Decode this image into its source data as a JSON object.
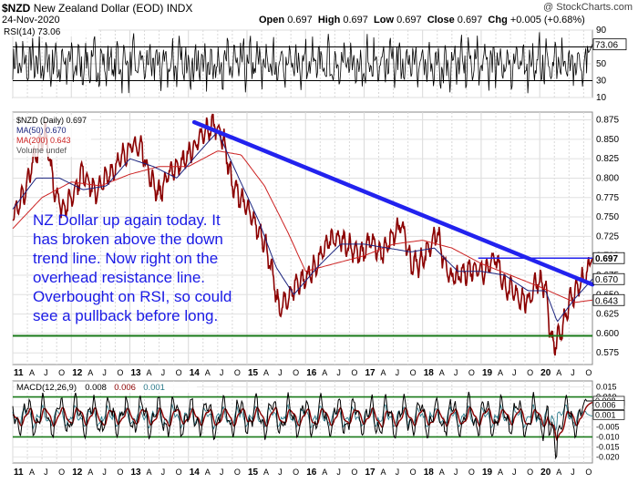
{
  "header": {
    "symbol": "$NZD",
    "name": "New Zealand Dollar (EOD)",
    "exchange": "INDX",
    "watermark": "@ StockCharts.com",
    "date": "24-Nov-2020",
    "open_label": "Open",
    "open": "0.697",
    "high_label": "High",
    "high": "0.697",
    "low_label": "Low",
    "low": "0.697",
    "close_label": "Close",
    "close": "0.697",
    "chg_label": "Chg",
    "chg": "+0.005 (+0.68%)"
  },
  "annotation": {
    "lines": [
      "NZ Dollar up again today. It",
      "has broken above the down",
      "trend line. Now right on the",
      "overhead resistance line.",
      "Overbought on RSI, so could",
      "see a pullback before long."
    ]
  },
  "colors": {
    "price": "#8b0000",
    "ma50": "#1a237e",
    "ma200": "#cc2222",
    "trendline": "#2222ee",
    "resistance": "#2222ee",
    "support": "#1a7a1a",
    "macd": "#000000",
    "signal": "#8b0000",
    "histogram": "#2a7a8a"
  },
  "chart_data": [
    {
      "type": "line",
      "panel": "RSI",
      "legend": "RSI(14) 73.06",
      "series": [
        {
          "name": "RSI(14)",
          "last": 73.06
        }
      ],
      "ylim": [
        10,
        90
      ],
      "yticks": [
        90,
        70,
        50,
        30,
        10
      ],
      "last_label": "73.06",
      "reference_lines": [
        70,
        30
      ],
      "highlight_ranges": []
    },
    {
      "type": "line",
      "panel": "Price",
      "legend": [
        {
          "text": "$NZD (Daily) 0.697",
          "color": "#000000"
        },
        {
          "text": "MA(50) 0.670",
          "color": "#1a237e"
        },
        {
          "text": "MA(200) 0.643",
          "color": "#cc2222"
        },
        {
          "text": "Volume undef",
          "color": "#555555"
        }
      ],
      "ylim": [
        0.56,
        0.885
      ],
      "yticks": [
        "0.875",
        "0.850",
        "0.825",
        "0.800",
        "0.775",
        "0.750",
        "0.725",
        "0.700",
        "0.675",
        "0.650",
        "0.625",
        "0.600",
        "0.575"
      ],
      "right_badges": [
        {
          "text": "0.697",
          "value": 0.697,
          "bold": true
        },
        {
          "text": "0.670",
          "value": 0.67
        },
        {
          "text": "0.643",
          "value": 0.643
        }
      ],
      "x_start": 2011.0,
      "x_end": 2020.9,
      "xticks": [
        "11",
        "A",
        "J",
        "O",
        "12",
        "A",
        "J",
        "O",
        "13",
        "A",
        "J",
        "O",
        "14",
        "A",
        "J",
        "O",
        "15",
        "A",
        "J",
        "O",
        "16",
        "A",
        "J",
        "O",
        "17",
        "A",
        "J",
        "O",
        "18",
        "A",
        "J",
        "O",
        "19",
        "A",
        "J",
        "O",
        "20",
        "A",
        "J",
        "O"
      ],
      "series": [
        {
          "name": "$NZD (Daily)",
          "x": [
            2011.0,
            2011.2,
            2011.35,
            2011.55,
            2011.7,
            2011.85,
            2012.0,
            2012.2,
            2012.4,
            2012.6,
            2012.8,
            2013.0,
            2013.2,
            2013.35,
            2013.5,
            2013.7,
            2013.9,
            2014.1,
            2014.3,
            2014.45,
            2014.6,
            2014.75,
            2014.9,
            2015.1,
            2015.3,
            2015.45,
            2015.55,
            2015.7,
            2015.85,
            2016.0,
            2016.2,
            2016.4,
            2016.6,
            2016.8,
            2016.95,
            2017.1,
            2017.3,
            2017.5,
            2017.65,
            2017.8,
            2017.95,
            2018.1,
            2018.25,
            2018.4,
            2018.55,
            2018.75,
            2018.9,
            2019.05,
            2019.25,
            2019.4,
            2019.6,
            2019.8,
            2019.95,
            2020.1,
            2020.18,
            2020.23,
            2020.35,
            2020.5,
            2020.65,
            2020.8,
            2020.9
          ],
          "values": [
            0.755,
            0.78,
            0.82,
            0.86,
            0.79,
            0.76,
            0.775,
            0.81,
            0.78,
            0.8,
            0.82,
            0.84,
            0.84,
            0.8,
            0.78,
            0.81,
            0.82,
            0.84,
            0.86,
            0.87,
            0.85,
            0.79,
            0.775,
            0.745,
            0.72,
            0.67,
            0.63,
            0.645,
            0.665,
            0.67,
            0.69,
            0.72,
            0.72,
            0.71,
            0.7,
            0.72,
            0.7,
            0.73,
            0.74,
            0.69,
            0.69,
            0.71,
            0.73,
            0.68,
            0.67,
            0.68,
            0.685,
            0.68,
            0.7,
            0.66,
            0.65,
            0.64,
            0.67,
            0.66,
            0.6,
            0.58,
            0.6,
            0.64,
            0.66,
            0.675,
            0.697
          ]
        },
        {
          "name": "MA(50)",
          "x": [
            2011.0,
            2011.4,
            2011.8,
            2012.2,
            2012.6,
            2013.0,
            2013.4,
            2013.8,
            2014.2,
            2014.5,
            2014.8,
            2015.2,
            2015.5,
            2015.8,
            2016.2,
            2016.6,
            2017.0,
            2017.4,
            2017.8,
            2018.2,
            2018.6,
            2019.0,
            2019.4,
            2019.8,
            2020.1,
            2020.3,
            2020.6,
            2020.9
          ],
          "values": [
            0.76,
            0.8,
            0.8,
            0.785,
            0.79,
            0.825,
            0.815,
            0.8,
            0.835,
            0.86,
            0.81,
            0.745,
            0.685,
            0.65,
            0.685,
            0.715,
            0.715,
            0.71,
            0.705,
            0.71,
            0.68,
            0.68,
            0.675,
            0.655,
            0.655,
            0.615,
            0.645,
            0.67
          ]
        },
        {
          "name": "MA(200)",
          "x": [
            2011.0,
            2011.5,
            2012.0,
            2012.5,
            2013.0,
            2013.5,
            2014.0,
            2014.5,
            2014.9,
            2015.3,
            2015.7,
            2016.0,
            2016.5,
            2017.0,
            2017.5,
            2018.0,
            2018.5,
            2019.0,
            2019.5,
            2020.0,
            2020.3,
            2020.6,
            2020.9
          ],
          "values": [
            0.735,
            0.775,
            0.795,
            0.79,
            0.805,
            0.815,
            0.815,
            0.835,
            0.83,
            0.79,
            0.73,
            0.68,
            0.69,
            0.7,
            0.715,
            0.72,
            0.71,
            0.69,
            0.675,
            0.66,
            0.65,
            0.64,
            0.643
          ]
        }
      ],
      "trendlines": [
        {
          "name": "down trend line",
          "x": [
            2014.1,
            2020.9
          ],
          "values": [
            0.872,
            0.663
          ]
        },
        {
          "name": "overhead resistance",
          "x": [
            2018.95,
            2020.9
          ],
          "values": [
            0.697,
            0.697
          ]
        },
        {
          "name": "support",
          "x": [
            2011.0,
            2020.9
          ],
          "values": [
            0.597,
            0.597
          ]
        }
      ]
    },
    {
      "type": "line",
      "panel": "MACD",
      "legend": [
        {
          "text": "MACD(12,26,9)",
          "color": "#000000"
        },
        {
          "text": "0.008",
          "color": "#000000"
        },
        {
          "text": "0.006",
          "color": "#8b0000"
        },
        {
          "text": "0.001",
          "color": "#2a7a8a"
        }
      ],
      "ylim": [
        -0.023,
        0.018
      ],
      "yticks": [
        "0.015",
        "0.010",
        "0.005",
        "0.000",
        "-0.005",
        "-0.010",
        "-0.015",
        "-0.020"
      ],
      "right_badges": [
        {
          "text": "0.008",
          "value": 0.008
        },
        {
          "text": "0.006",
          "value": 0.006
        },
        {
          "text": "0.001",
          "value": 0.001
        }
      ],
      "reference_lines": [
        0.01,
        -0.01
      ],
      "series": [
        {
          "name": "MACD",
          "last": 0.008
        },
        {
          "name": "Signal",
          "last": 0.006
        },
        {
          "name": "Histogram",
          "last": 0.001
        }
      ]
    }
  ]
}
